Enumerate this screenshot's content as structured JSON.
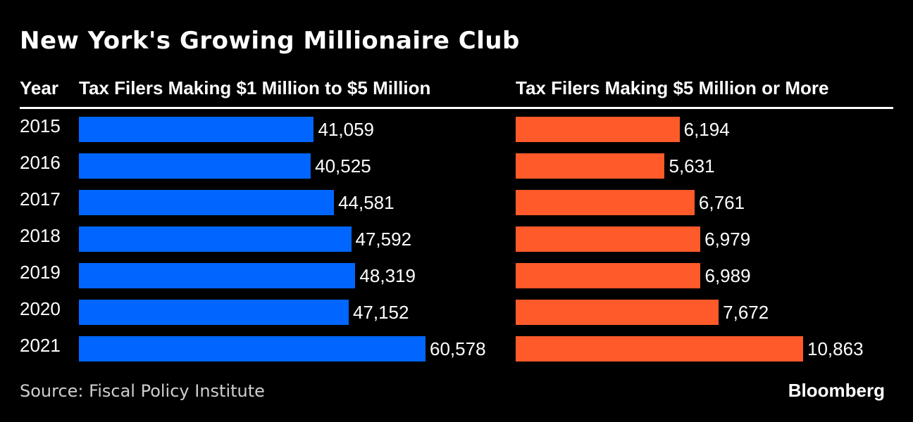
{
  "chart_data": {
    "type": "bar",
    "orientation": "horizontal",
    "title": "New York's Growing Millionaire Club",
    "category_header": "Year",
    "categories": [
      "2015",
      "2016",
      "2017",
      "2018",
      "2019",
      "2020",
      "2021"
    ],
    "series": [
      {
        "name": "Tax Filers Making $1 Million to $5 Million",
        "values": [
          41059,
          40525,
          44581,
          47592,
          48319,
          47152,
          60578
        ],
        "labels": [
          "41,059",
          "40,525",
          "44,581",
          "47,592",
          "48,319",
          "47,152",
          "60,578"
        ],
        "color": "#0066ff"
      },
      {
        "name": "Tax Filers Making $5 Million or More",
        "values": [
          6194,
          5631,
          6761,
          6979,
          6989,
          7672,
          10863
        ],
        "labels": [
          "6,194",
          "5,631",
          "6,761",
          "6,979",
          "6,989",
          "7,672",
          "10,863"
        ],
        "color": "#ff5a2a"
      }
    ],
    "grid": false,
    "legend": "none"
  },
  "footer": {
    "source": "Source: Fiscal Policy Institute",
    "brand": "Bloomberg"
  }
}
